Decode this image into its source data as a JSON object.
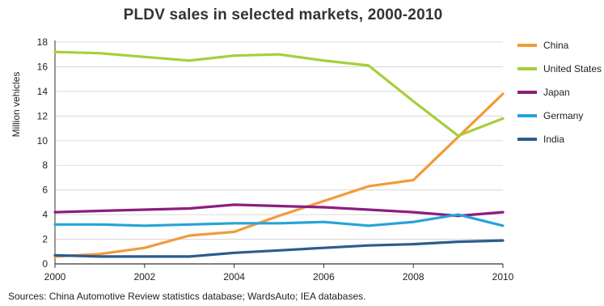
{
  "chart_data": {
    "type": "line",
    "title": "PLDV sales in selected markets, 2000-2010",
    "xlabel": "",
    "ylabel": "Million vehicles",
    "x": [
      2000,
      2001,
      2002,
      2003,
      2004,
      2005,
      2006,
      2007,
      2008,
      2009,
      2010
    ],
    "xticks": [
      "2000",
      "2002",
      "2004",
      "2006",
      "2008",
      "2010"
    ],
    "yticks": [
      "0",
      "2",
      "4",
      "6",
      "8",
      "10",
      "12",
      "14",
      "16",
      "18"
    ],
    "xlim": [
      2000,
      2010
    ],
    "ylim": [
      0,
      18
    ],
    "grid": true,
    "legend_position": "right",
    "series": [
      {
        "name": "China",
        "color": "#f29a38",
        "values": [
          0.6,
          0.8,
          1.3,
          2.3,
          2.6,
          3.9,
          5.1,
          6.3,
          6.8,
          10.3,
          13.8
        ]
      },
      {
        "name": "United States",
        "color": "#a6cf3b",
        "values": [
          17.2,
          17.1,
          16.8,
          16.5,
          16.9,
          17.0,
          16.5,
          16.1,
          13.2,
          10.4,
          11.8
        ]
      },
      {
        "name": "Japan",
        "color": "#8b1e7e",
        "values": [
          4.2,
          4.3,
          4.4,
          4.5,
          4.8,
          4.7,
          4.6,
          4.4,
          4.2,
          3.9,
          4.2
        ]
      },
      {
        "name": "Germany",
        "color": "#27a3d9",
        "values": [
          3.2,
          3.2,
          3.1,
          3.2,
          3.3,
          3.3,
          3.4,
          3.1,
          3.4,
          4.0,
          3.1
        ]
      },
      {
        "name": "India",
        "color": "#2b5d8c",
        "values": [
          0.7,
          0.6,
          0.6,
          0.6,
          0.9,
          1.1,
          1.3,
          1.5,
          1.6,
          1.8,
          1.9
        ]
      }
    ]
  },
  "source": "Sources: China Automotive Review statistics database; WardsAuto; IEA databases."
}
